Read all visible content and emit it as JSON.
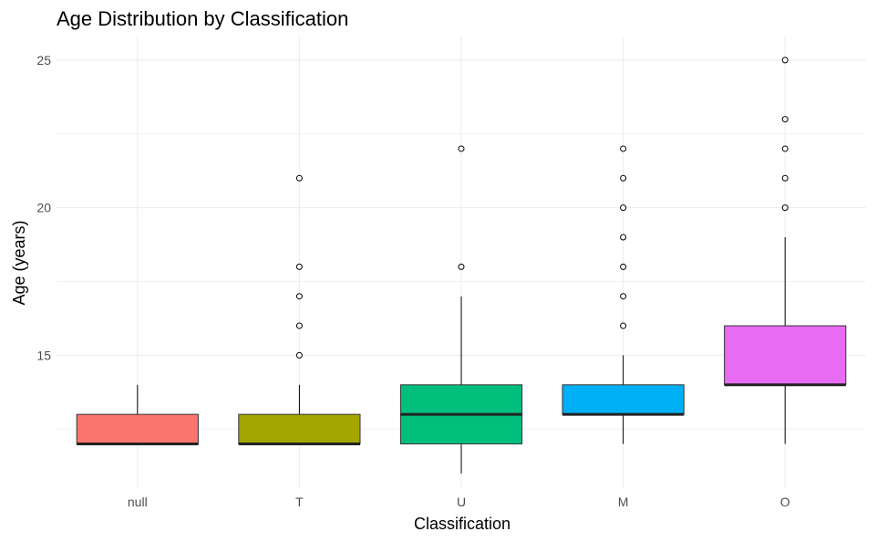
{
  "chart_data": {
    "type": "boxplot",
    "title": "Age Distribution by Classification",
    "xlabel": "Classification",
    "ylabel": "Age (years)",
    "ylim": [
      10.5,
      25.8
    ],
    "yticks": [
      15,
      20,
      25
    ],
    "yminor": [
      12.5,
      17.5,
      22.5
    ],
    "grid": true,
    "categories": [
      "null",
      "T",
      "U",
      "M",
      "O"
    ],
    "series": [
      {
        "category": "null",
        "color": "#F8766D",
        "min": 12,
        "q1": 12,
        "median": 12,
        "q3": 13,
        "max": 14,
        "outliers": []
      },
      {
        "category": "T",
        "color": "#A3A500",
        "min": 12,
        "q1": 12,
        "median": 12,
        "q3": 13,
        "max": 14,
        "outliers": [
          15,
          16,
          17,
          18,
          21
        ]
      },
      {
        "category": "U",
        "color": "#00BF7D",
        "min": 11,
        "q1": 12,
        "median": 13,
        "q3": 14,
        "max": 17,
        "outliers": [
          18,
          22
        ]
      },
      {
        "category": "M",
        "color": "#00B0F6",
        "min": 12,
        "q1": 13,
        "median": 13,
        "q3": 14,
        "max": 15,
        "outliers": [
          16,
          17,
          18,
          19,
          20,
          21,
          22
        ]
      },
      {
        "category": "O",
        "color": "#E76BF3",
        "min": 12,
        "q1": 14,
        "median": 14,
        "q3": 16,
        "max": 19,
        "outliers": [
          20,
          21,
          22,
          23,
          25
        ]
      }
    ]
  }
}
